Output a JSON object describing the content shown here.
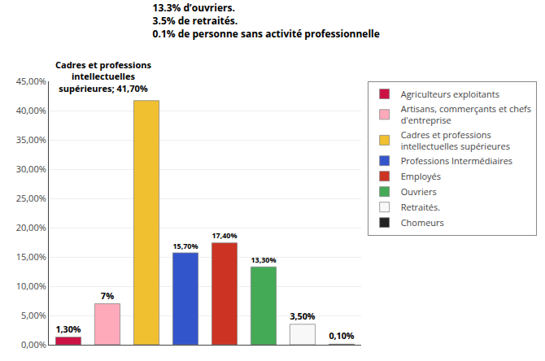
{
  "chart_data": {
    "type": "bar",
    "subtitle": "13.3% d’ouvriers.\n3.5% de retraités.\n0.1% de personne sans activité professionnelle",
    "categories": [
      "Agriculteurs exploitants",
      "Artisans, commerçants et chefs\nd'entreprise",
      "Cadres et professions\nintellectuelles supérieures",
      "Professions Intermédiaires",
      "Employés",
      "Ouvriers",
      "Retraités.",
      "Chomeurs"
    ],
    "values": [
      1.3,
      7.0,
      41.7,
      15.7,
      17.4,
      13.3,
      3.5,
      0.1
    ],
    "value_labels": [
      "1,30%",
      "7%",
      null,
      "15,70%",
      "17,40%",
      "13,30%",
      "3,50%",
      "0,10%"
    ],
    "colors": [
      "#cc1144",
      "#ffaabb",
      "#f0c030",
      "#3355cc",
      "#cc3322",
      "#44aa55",
      "#f8f8f8",
      "#222222"
    ],
    "data_labels": true,
    "annotations": [
      {
        "text": "Cadres et professions\nintellectuelles\nsupérieures; 41,70%",
        "category": "Cadres et professions\nintellectuelles supérieures"
      }
    ],
    "ylim": [
      0,
      45
    ],
    "yticks": [
      {
        "value": 0.0,
        "label": "0,00%"
      },
      {
        "value": 5.0,
        "label": "5,00%"
      },
      {
        "value": 10.0,
        "label": "10,00%"
      },
      {
        "value": 15.0,
        "label": "15,00%"
      },
      {
        "value": 20.0,
        "label": "20,00%"
      },
      {
        "value": 25.0,
        "label": "25,00%"
      },
      {
        "value": 30.0,
        "label": "30,00%"
      },
      {
        "value": 35.0,
        "label": "35,00%"
      },
      {
        "value": 40.0,
        "label": "40,00%"
      },
      {
        "value": 45.0,
        "label": "45,00%"
      }
    ],
    "grid": true,
    "legend": "right",
    "tick_labels": "y"
  }
}
